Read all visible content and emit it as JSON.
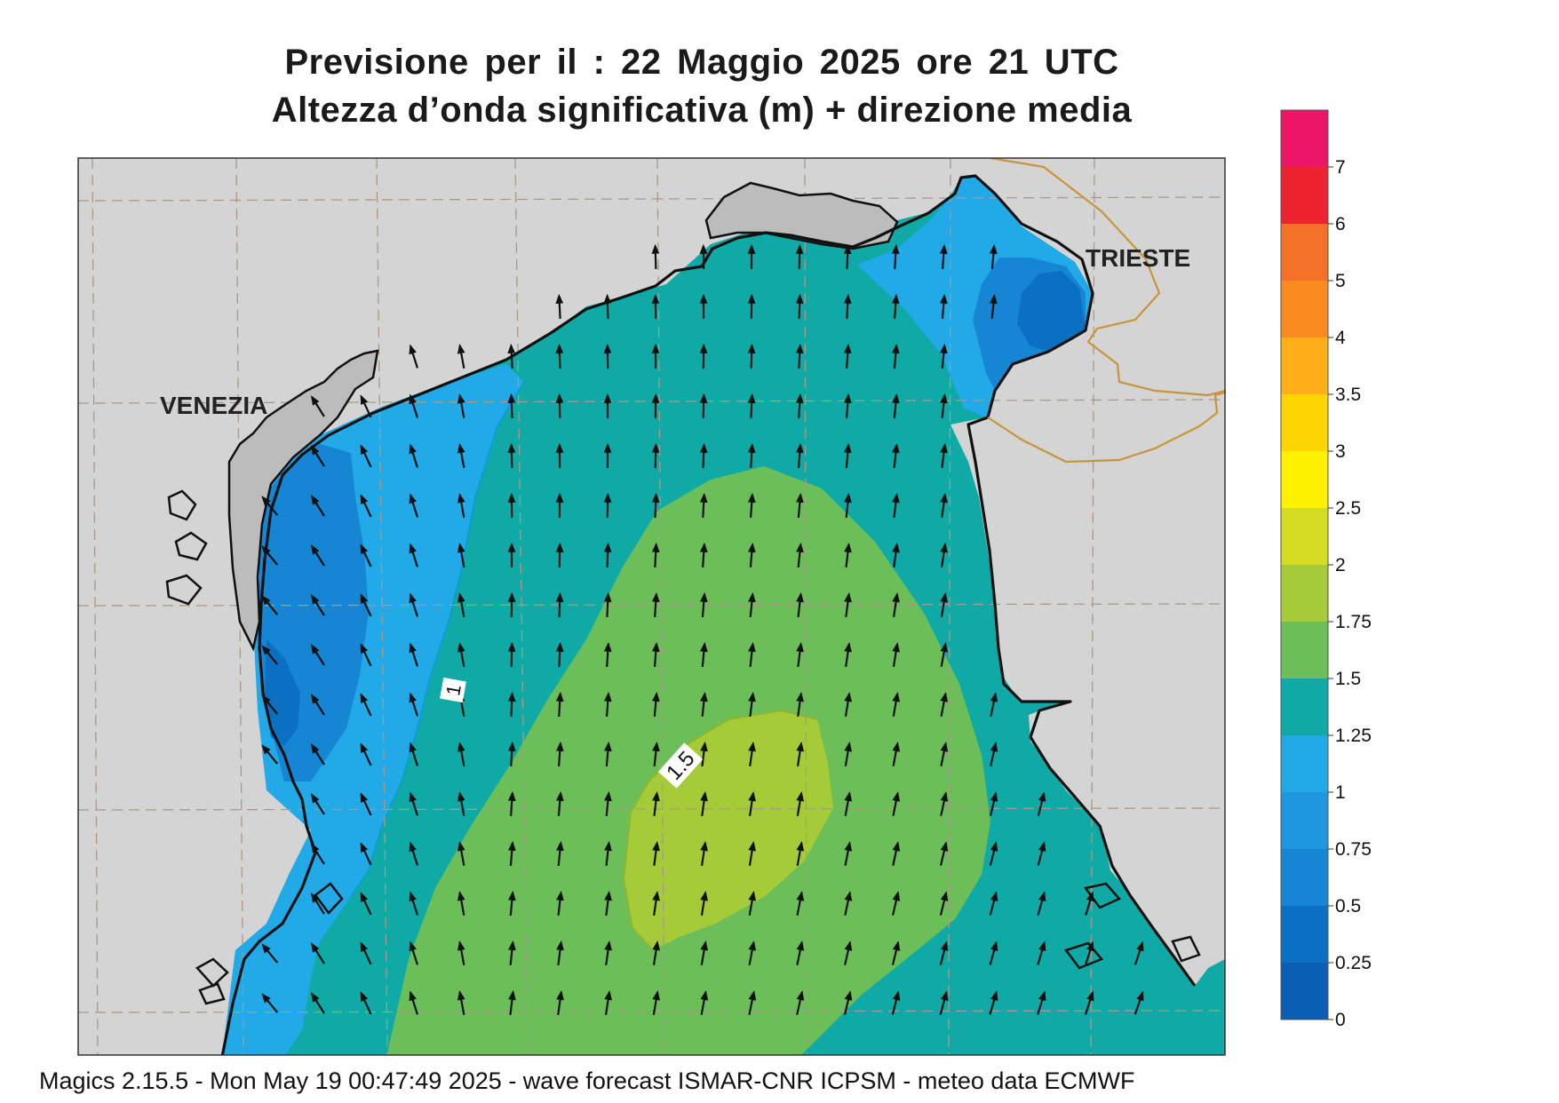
{
  "title": {
    "line1": "Previsione per il  :  22   Maggio  2025   ore 21 UTC",
    "line2": "Altezza d’onda significativa (m) + direzione media"
  },
  "map": {
    "cities": [
      {
        "id": "venezia",
        "name": "VENEZIA"
      },
      {
        "id": "trieste",
        "name": "TRIESTE"
      }
    ],
    "contour_labels": [
      "1",
      "1.5"
    ],
    "land_color": "#d4d4d4",
    "coast_color": "#111111",
    "border_color": "#c8953a",
    "grid_color": "#a89a88"
  },
  "colorbar": {
    "labels": [
      "0",
      "0.25",
      "0.5",
      "0.75",
      "1",
      "1.25",
      "1.5",
      "1.75",
      "2",
      "2.5",
      "3",
      "3.5",
      "4",
      "5",
      "6",
      "7"
    ],
    "colors": [
      "#0a5fb4",
      "#0b70c2",
      "#1685d3",
      "#1f96e0",
      "#22a9e8",
      "#10aaa6",
      "#6cbf58",
      "#a5cc38",
      "#d6dc22",
      "#fff200",
      "#ffd400",
      "#ffaf1a",
      "#fb8b20",
      "#f47128",
      "#ed2330",
      "#ed1565"
    ]
  },
  "footer": "Magics 2.15.5 - Mon May 19 00:47:49 2025 - wave forecast  ISMAR-CNR  ICPSM - meteo data   ECMWF"
}
